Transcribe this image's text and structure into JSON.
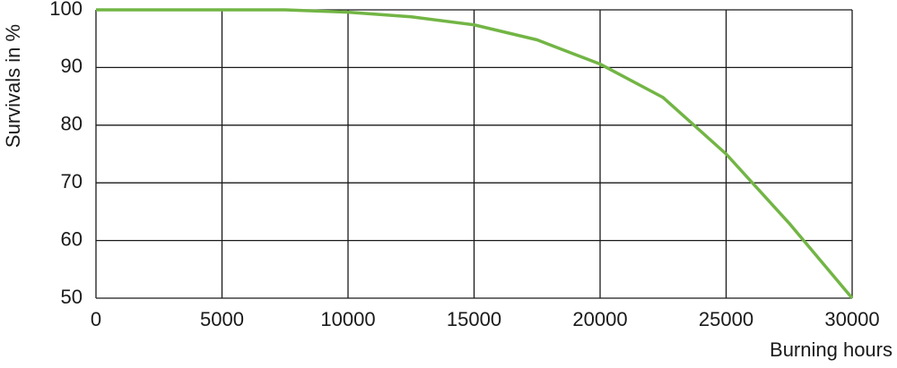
{
  "chart_data": {
    "type": "line",
    "x_label": "Burning hours",
    "y_label": "Survivals in %",
    "x": [
      0,
      2500,
      5000,
      7500,
      10000,
      12500,
      15000,
      17500,
      20000,
      22500,
      25000,
      27500,
      30000
    ],
    "series": [
      {
        "name": "Survivals",
        "color": "#72b545",
        "values": [
          100,
          100,
          100,
          100,
          99.6,
          98.8,
          97.4,
          94.8,
          90.6,
          84.8,
          75,
          63,
          50
        ]
      }
    ],
    "xlim": [
      0,
      30000
    ],
    "xticks": [
      0,
      5000,
      10000,
      15000,
      20000,
      25000,
      30000
    ],
    "ylim": [
      50,
      100
    ],
    "yticks": [
      50,
      60,
      70,
      80,
      90,
      100
    ],
    "grid": true
  }
}
